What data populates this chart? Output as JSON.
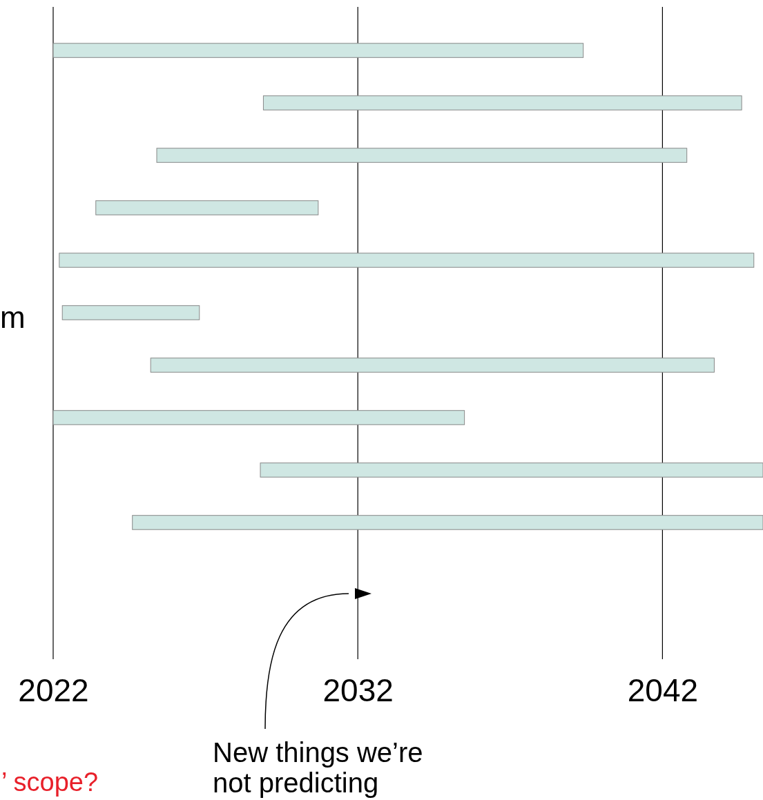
{
  "chart_data": {
    "type": "bar",
    "orientation": "horizontal",
    "categories": [
      null,
      null,
      null,
      null,
      null,
      null,
      null,
      null,
      null,
      null
    ],
    "base": [
      2022,
      2028.9,
      2025.4,
      2023.4,
      2022.2,
      2022.3,
      2025.2,
      2022,
      2028.8,
      2024.6
    ],
    "values": [
      17.4,
      15.7,
      17.4,
      7.3,
      22.8,
      4.5,
      18.5,
      13.5,
      16.5,
      20.7
    ],
    "color": "#cfe7e3",
    "xlim": [
      2022,
      2045.3
    ],
    "xticks": [
      2022,
      2032,
      2042
    ],
    "grid": "x",
    "annotations": [
      "m",
      "’ scope?",
      "New things we’re not predicting"
    ]
  }
}
